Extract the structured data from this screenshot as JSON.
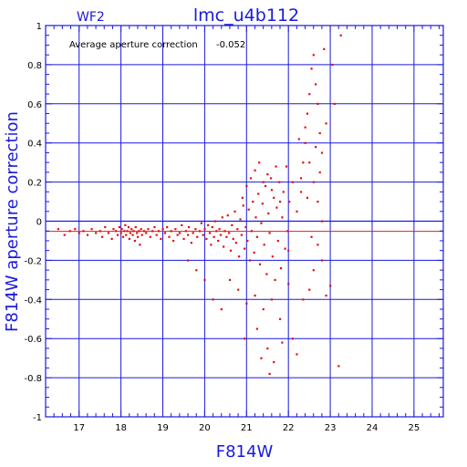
{
  "chart_data": {
    "type": "scatter",
    "title": "lmc_u4b112",
    "panel_label": "WF2",
    "annotation": {
      "label": "Average aperture correction",
      "value": "-0.052"
    },
    "xlabel": "F814W",
    "ylabel": "F814W aperture correction",
    "xlim": [
      16.2,
      25.7
    ],
    "ylim": [
      -1,
      1
    ],
    "xticks": [
      "17",
      "18",
      "19",
      "20",
      "21",
      "22",
      "23",
      "24",
      "25"
    ],
    "yticks": [
      "-1",
      "-0.8",
      "-0.6",
      "-0.4",
      "-0.2",
      "0",
      "0.2",
      "0.4",
      "0.6",
      "0.8",
      "1"
    ],
    "grid": true,
    "reference_lines": [
      {
        "y": 0,
        "color": "#1a1adc"
      },
      {
        "y": -0.052,
        "color": "#d62020"
      }
    ],
    "colors": {
      "axes": "#1a1adc",
      "points": "#e01010",
      "mean_line": "#d62020"
    },
    "series": [
      {
        "points": [
          [
            16.5,
            -0.04
          ],
          [
            16.65,
            -0.07
          ],
          [
            16.78,
            -0.05
          ],
          [
            16.9,
            -0.04
          ],
          [
            17.0,
            -0.06
          ],
          [
            17.1,
            -0.05
          ],
          [
            17.2,
            -0.07
          ],
          [
            17.3,
            -0.04
          ],
          [
            17.4,
            -0.06
          ],
          [
            17.5,
            -0.05
          ],
          [
            17.55,
            -0.08
          ],
          [
            17.62,
            -0.03
          ],
          [
            17.7,
            -0.06
          ],
          [
            17.78,
            -0.09
          ],
          [
            17.82,
            -0.04
          ],
          [
            17.88,
            -0.05
          ],
          [
            17.92,
            -0.07
          ],
          [
            17.96,
            -0.03
          ],
          [
            18.0,
            -0.06
          ],
          [
            18.02,
            -0.04
          ],
          [
            18.05,
            -0.08
          ],
          [
            18.08,
            -0.05
          ],
          [
            18.1,
            -0.02
          ],
          [
            18.12,
            -0.07
          ],
          [
            18.15,
            -0.05
          ],
          [
            18.18,
            -0.03
          ],
          [
            18.2,
            -0.09
          ],
          [
            18.22,
            -0.06
          ],
          [
            18.25,
            -0.04
          ],
          [
            18.28,
            -0.07
          ],
          [
            18.3,
            -0.05
          ],
          [
            18.33,
            -0.1
          ],
          [
            18.35,
            -0.03
          ],
          [
            18.38,
            -0.06
          ],
          [
            18.4,
            -0.08
          ],
          [
            18.43,
            -0.05
          ],
          [
            18.45,
            -0.12
          ],
          [
            18.48,
            -0.04
          ],
          [
            18.5,
            -0.07
          ],
          [
            18.55,
            -0.05
          ],
          [
            18.6,
            -0.06
          ],
          [
            18.65,
            -0.04
          ],
          [
            18.7,
            -0.08
          ],
          [
            18.75,
            -0.05
          ],
          [
            18.8,
            -0.03
          ],
          [
            18.85,
            -0.07
          ],
          [
            18.9,
            -0.05
          ],
          [
            18.95,
            -0.09
          ],
          [
            19.0,
            -0.04
          ],
          [
            19.05,
            -0.06
          ],
          [
            19.1,
            -0.03
          ],
          [
            19.15,
            -0.08
          ],
          [
            19.2,
            -0.05
          ],
          [
            19.25,
            -0.1
          ],
          [
            19.3,
            -0.04
          ],
          [
            19.35,
            -0.07
          ],
          [
            19.4,
            -0.06
          ],
          [
            19.45,
            -0.02
          ],
          [
            19.5,
            -0.09
          ],
          [
            19.55,
            -0.05
          ],
          [
            19.6,
            -0.07
          ],
          [
            19.62,
            -0.03
          ],
          [
            19.68,
            -0.11
          ],
          [
            19.72,
            -0.06
          ],
          [
            19.78,
            -0.04
          ],
          [
            19.82,
            -0.08
          ],
          [
            19.88,
            -0.05
          ],
          [
            19.92,
            -0.01
          ],
          [
            19.96,
            -0.07
          ],
          [
            20.0,
            -0.04
          ],
          [
            20.04,
            -0.09
          ],
          [
            20.08,
            -0.02
          ],
          [
            20.12,
            -0.06
          ],
          [
            20.15,
            -0.12
          ],
          [
            20.18,
            -0.03
          ],
          [
            20.22,
            -0.08
          ],
          [
            20.25,
            0.0
          ],
          [
            20.28,
            -0.05
          ],
          [
            20.32,
            -0.1
          ],
          [
            20.35,
            -0.04
          ],
          [
            20.38,
            -0.07
          ],
          [
            20.42,
            0.02
          ],
          [
            20.45,
            -0.13
          ],
          [
            20.48,
            -0.05
          ],
          [
            20.52,
            -0.08
          ],
          [
            20.55,
            0.03
          ],
          [
            20.58,
            -0.06
          ],
          [
            20.62,
            -0.15
          ],
          [
            20.65,
            -0.02
          ],
          [
            20.68,
            -0.09
          ],
          [
            20.72,
            0.05
          ],
          [
            20.75,
            -0.11
          ],
          [
            20.78,
            -0.04
          ],
          [
            20.82,
            -0.18
          ],
          [
            20.85,
            0.01
          ],
          [
            20.88,
            -0.07
          ],
          [
            20.92,
            0.08
          ],
          [
            20.95,
            -0.14
          ],
          [
            20.98,
            -0.03
          ],
          [
            21.02,
            -0.1
          ],
          [
            21.05,
            0.06
          ],
          [
            21.08,
            -0.2
          ],
          [
            21.12,
            -0.05
          ],
          [
            21.15,
            0.1
          ],
          [
            21.18,
            -0.16
          ],
          [
            21.22,
            0.02
          ],
          [
            21.25,
            -0.08
          ],
          [
            21.28,
            0.14
          ],
          [
            21.32,
            -0.22
          ],
          [
            21.35,
            -0.01
          ],
          [
            21.38,
            0.09
          ],
          [
            21.42,
            -0.12
          ],
          [
            21.45,
            0.18
          ],
          [
            21.48,
            -0.27
          ],
          [
            21.52,
            0.04
          ],
          [
            21.55,
            -0.06
          ],
          [
            21.58,
            0.22
          ],
          [
            21.62,
            -0.18
          ],
          [
            21.65,
            0.12
          ],
          [
            21.68,
            -0.3
          ],
          [
            21.72,
            0.07
          ],
          [
            21.75,
            -0.1
          ],
          [
            21.78,
            0.2
          ],
          [
            21.82,
            -0.24
          ],
          [
            21.85,
            0.02
          ],
          [
            21.88,
            0.15
          ],
          [
            21.92,
            -0.14
          ],
          [
            21.95,
            0.28
          ],
          [
            21.98,
            -0.05
          ],
          [
            22.02,
            0.1
          ],
          [
            20.9,
            0.12
          ],
          [
            21.0,
            0.18
          ],
          [
            21.1,
            0.22
          ],
          [
            21.2,
            0.26
          ],
          [
            21.3,
            0.3
          ],
          [
            21.4,
            0.2
          ],
          [
            21.5,
            0.24
          ],
          [
            21.6,
            0.16
          ],
          [
            21.7,
            0.28
          ],
          [
            21.8,
            0.1
          ],
          [
            20.6,
            -0.3
          ],
          [
            20.8,
            -0.35
          ],
          [
            21.0,
            -0.42
          ],
          [
            21.2,
            -0.38
          ],
          [
            21.4,
            -0.45
          ],
          [
            21.6,
            -0.4
          ],
          [
            21.8,
            -0.5
          ],
          [
            22.0,
            -0.32
          ],
          [
            20.4,
            -0.45
          ],
          [
            20.95,
            -0.6
          ],
          [
            21.25,
            -0.55
          ],
          [
            21.5,
            -0.65
          ],
          [
            21.65,
            -0.72
          ],
          [
            21.85,
            -0.62
          ],
          [
            21.55,
            -0.78
          ],
          [
            21.35,
            -0.7
          ],
          [
            20.2,
            -0.4
          ],
          [
            20.0,
            -0.3
          ],
          [
            19.8,
            -0.25
          ],
          [
            19.6,
            -0.2
          ],
          [
            22.1,
            -0.6
          ],
          [
            22.2,
            -0.68
          ],
          [
            22.35,
            -0.4
          ],
          [
            22.5,
            -0.35
          ],
          [
            22.6,
            -0.25
          ],
          [
            22.7,
            -0.12
          ],
          [
            22.8,
            -0.2
          ],
          [
            23.2,
            -0.74
          ],
          [
            22.9,
            -0.38
          ],
          [
            23.0,
            -0.33
          ],
          [
            22.2,
            0.05
          ],
          [
            22.3,
            0.15
          ],
          [
            22.35,
            0.3
          ],
          [
            22.4,
            0.4
          ],
          [
            22.45,
            0.55
          ],
          [
            22.5,
            0.65
          ],
          [
            22.55,
            0.78
          ],
          [
            22.6,
            0.85
          ],
          [
            22.65,
            0.7
          ],
          [
            22.7,
            0.6
          ],
          [
            22.75,
            0.45
          ],
          [
            22.8,
            0.35
          ],
          [
            22.85,
            0.88
          ],
          [
            22.9,
            0.5
          ],
          [
            23.05,
            0.8
          ],
          [
            23.1,
            0.6
          ],
          [
            23.25,
            0.95
          ],
          [
            22.25,
            0.42
          ],
          [
            22.4,
            0.48
          ],
          [
            22.5,
            0.3
          ],
          [
            22.6,
            0.2
          ],
          [
            22.7,
            0.1
          ],
          [
            22.8,
            0.0
          ],
          [
            22.3,
            0.22
          ],
          [
            22.45,
            0.12
          ],
          [
            22.55,
            -0.08
          ],
          [
            22.65,
            0.38
          ],
          [
            22.75,
            0.25
          ],
          [
            22.1,
            0.2
          ],
          [
            22.0,
            -0.15
          ]
        ]
      }
    ]
  }
}
